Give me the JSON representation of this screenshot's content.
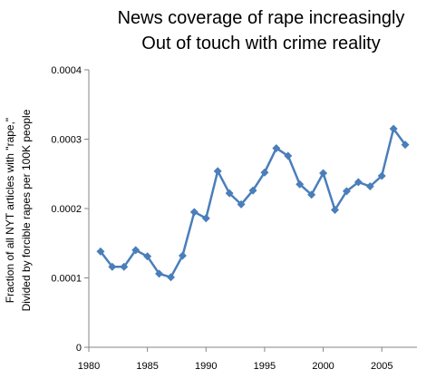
{
  "chart_data": {
    "type": "line",
    "title_lines": [
      "News coverage of rape increasingly",
      "Out of touch with crime reality"
    ],
    "ylabel_lines": [
      "Fraction of all NYT articles with \"rape,\"",
      "Divided by forcible rapes per 100K people"
    ],
    "xlabel": "",
    "xlim": [
      1980,
      2008
    ],
    "ylim": [
      0,
      0.0004
    ],
    "x_ticks": [
      1980,
      1985,
      1990,
      1995,
      2000,
      2005
    ],
    "x_tick_labels": [
      "1980",
      "1985",
      "1990",
      "1995",
      "2000",
      "2005"
    ],
    "y_ticks": [
      0,
      0.0001,
      0.0002,
      0.0003,
      0.0004
    ],
    "y_tick_labels": [
      "0",
      "0.0001",
      "0.0002",
      "0.0003",
      "0.0004"
    ],
    "grid": false,
    "legend": "none",
    "series": [
      {
        "color": "#4a7ebb",
        "marker": "diamond",
        "x": [
          1981,
          1982,
          1983,
          1984,
          1985,
          1986,
          1987,
          1988,
          1989,
          1990,
          1991,
          1992,
          1993,
          1994,
          1995,
          1996,
          1997,
          1998,
          1999,
          2000,
          2001,
          2002,
          2003,
          2004,
          2005,
          2006,
          2007
        ],
        "y": [
          0.000138,
          0.000116,
          0.000116,
          0.00014,
          0.000131,
          0.000106,
          0.000101,
          0.000132,
          0.000195,
          0.000186,
          0.000254,
          0.000222,
          0.000206,
          0.000226,
          0.000252,
          0.000287,
          0.000276,
          0.000235,
          0.00022,
          0.000251,
          0.000198,
          0.000225,
          0.000238,
          0.000232,
          0.000247,
          0.000315,
          0.000292
        ]
      }
    ]
  }
}
